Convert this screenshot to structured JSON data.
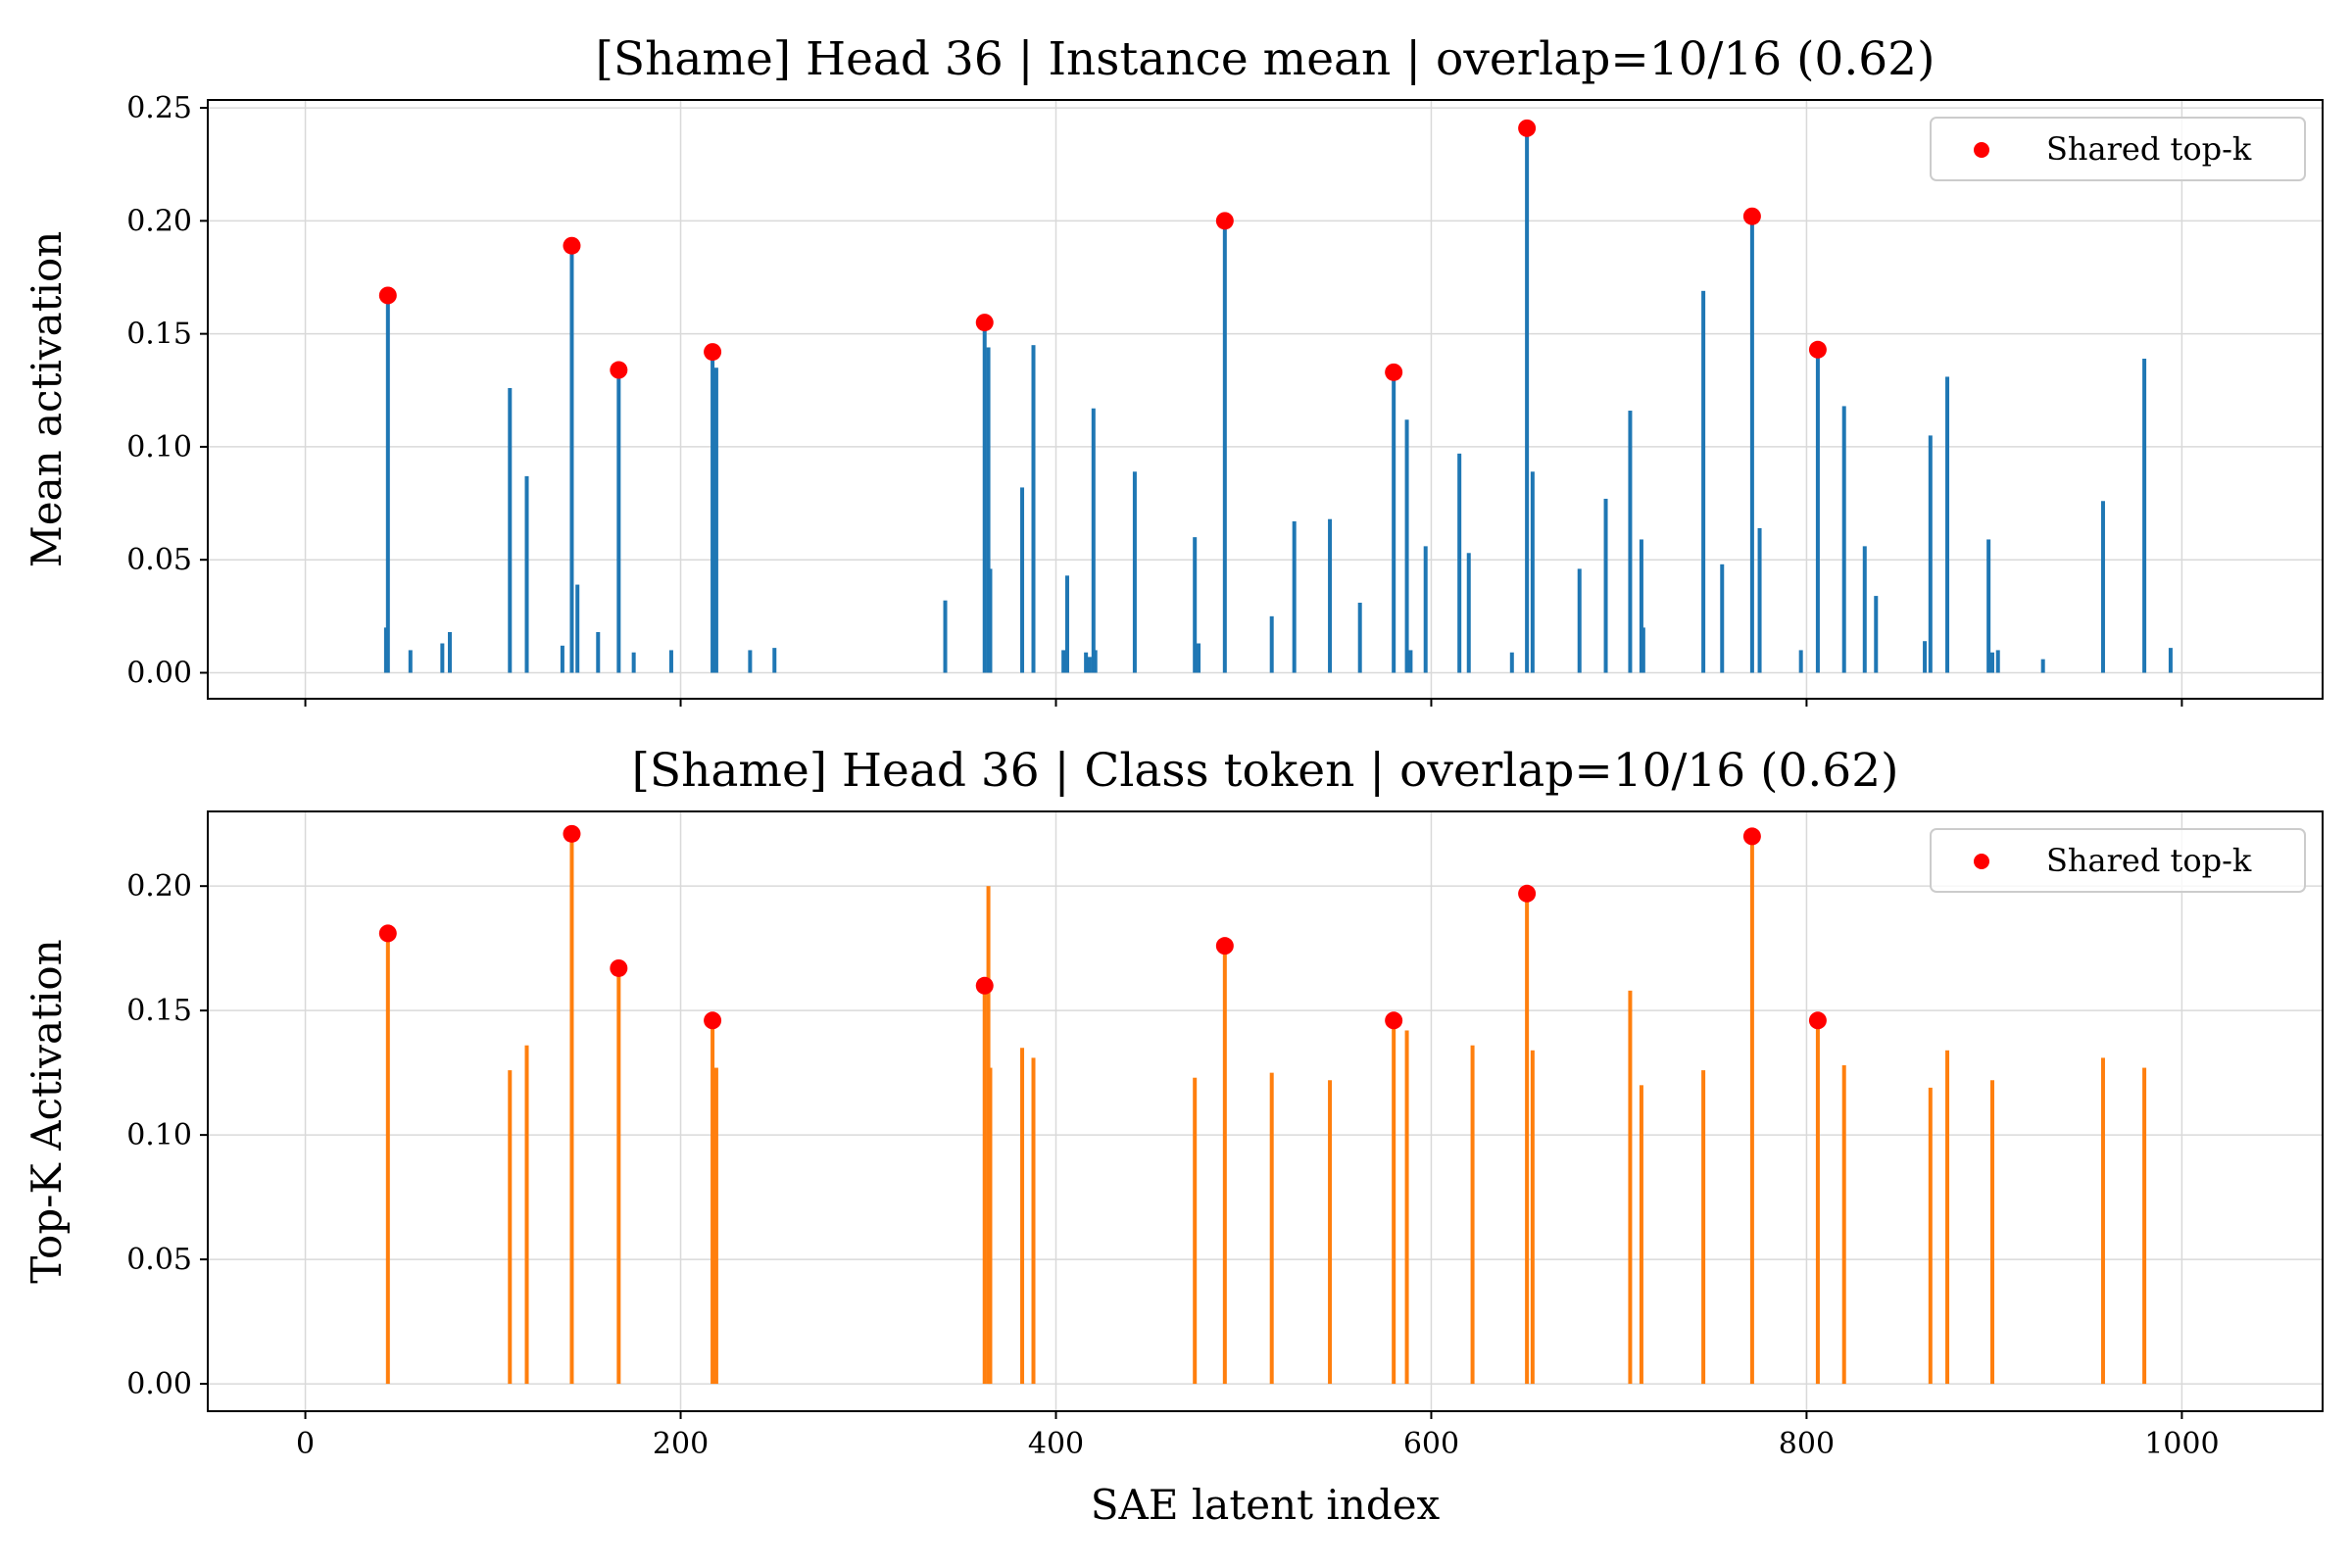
{
  "chart_data": [
    {
      "type": "bar",
      "title": "[Shame] Head 36 | Instance mean | overlap=10/16 (0.62)",
      "xlabel": "",
      "ylabel": "Mean activation",
      "xlim": [
        -52,
        1075
      ],
      "ylim": [
        -0.0115,
        0.2535
      ],
      "xticks": [
        "0",
        "200",
        "400",
        "600",
        "800",
        "1000"
      ],
      "xtick_values": [
        0,
        200,
        400,
        600,
        800,
        1000
      ],
      "show_xtick_labels": false,
      "yticks": [
        "0.00",
        "0.05",
        "0.10",
        "0.15",
        "0.20",
        "0.25"
      ],
      "ytick_values": [
        0,
        0.05,
        0.1,
        0.15,
        0.2,
        0.25
      ],
      "grid": true,
      "bar_color": "#1f77b4",
      "marker_color": "#ff0000",
      "legend": {
        "label": "Shared top-k",
        "placement": "top-right"
      },
      "series": [
        {
          "name": "Mean activation",
          "x": [
            43,
            44,
            56,
            73,
            77,
            109,
            118,
            137,
            142,
            145,
            156,
            167,
            175,
            195,
            217,
            219,
            237,
            250,
            341,
            362,
            364,
            365,
            382,
            388,
            404,
            406,
            416,
            418,
            420,
            421,
            442,
            474,
            476,
            490,
            515,
            527,
            546,
            562,
            580,
            587,
            589,
            597,
            615,
            620,
            643,
            651,
            654,
            679,
            693,
            706,
            712,
            713,
            745,
            755,
            771,
            775,
            797,
            806,
            820,
            831,
            837,
            863,
            866,
            875,
            897,
            899,
            902,
            926,
            958,
            980,
            994
          ],
          "values": [
            0.02,
            0.165,
            0.01,
            0.013,
            0.018,
            0.126,
            0.087,
            0.012,
            0.187,
            0.039,
            0.018,
            0.132,
            0.009,
            0.01,
            0.14,
            0.135,
            0.01,
            0.011,
            0.032,
            0.153,
            0.144,
            0.046,
            0.082,
            0.145,
            0.01,
            0.043,
            0.009,
            0.007,
            0.117,
            0.01,
            0.089,
            0.06,
            0.013,
            0.2,
            0.025,
            0.067,
            0.068,
            0.031,
            0.131,
            0.112,
            0.01,
            0.056,
            0.097,
            0.053,
            0.009,
            0.239,
            0.089,
            0.046,
            0.077,
            0.116,
            0.059,
            0.02,
            0.169,
            0.048,
            0.2,
            0.064,
            0.01,
            0.142,
            0.118,
            0.056,
            0.034,
            0.014,
            0.105,
            0.131,
            0.059,
            0.009,
            0.01,
            0.006,
            0.076,
            0.139,
            0.011
          ]
        }
      ],
      "shared_topk": {
        "x": [
          44,
          142,
          167,
          217,
          362,
          490,
          580,
          651,
          771,
          806
        ],
        "values": [
          0.167,
          0.189,
          0.134,
          0.142,
          0.155,
          0.2,
          0.133,
          0.241,
          0.202,
          0.143
        ]
      }
    },
    {
      "type": "bar",
      "title": "[Shame] Head 36 | Class token | overlap=10/16 (0.62)",
      "xlabel": "SAE latent index",
      "ylabel": "Top-K Activation",
      "xlim": [
        -52,
        1075
      ],
      "ylim": [
        -0.011,
        0.23
      ],
      "xticks": [
        "0",
        "200",
        "400",
        "600",
        "800",
        "1000"
      ],
      "xtick_values": [
        0,
        200,
        400,
        600,
        800,
        1000
      ],
      "show_xtick_labels": true,
      "yticks": [
        "0.00",
        "0.05",
        "0.10",
        "0.15",
        "0.20"
      ],
      "ytick_values": [
        0,
        0.05,
        0.1,
        0.15,
        0.2
      ],
      "grid": true,
      "bar_color": "#ff7f0e",
      "marker_color": "#ff0000",
      "legend": {
        "label": "Shared top-k",
        "placement": "top-right"
      },
      "series": [
        {
          "name": "Top-K Activation",
          "x": [
            44,
            109,
            118,
            142,
            167,
            217,
            219,
            362,
            364,
            365,
            382,
            388,
            474,
            490,
            515,
            546,
            580,
            587,
            622,
            651,
            654,
            706,
            712,
            745,
            771,
            806,
            820,
            866,
            875,
            899,
            958,
            980
          ],
          "values": [
            0.181,
            0.126,
            0.136,
            0.221,
            0.167,
            0.146,
            0.127,
            0.16,
            0.2,
            0.127,
            0.135,
            0.131,
            0.123,
            0.176,
            0.125,
            0.122,
            0.146,
            0.142,
            0.136,
            0.197,
            0.134,
            0.158,
            0.12,
            0.126,
            0.22,
            0.146,
            0.128,
            0.119,
            0.134,
            0.122,
            0.131,
            0.127
          ]
        }
      ],
      "shared_topk": {
        "x": [
          44,
          142,
          167,
          217,
          362,
          490,
          580,
          651,
          771,
          806
        ],
        "values": [
          0.181,
          0.221,
          0.167,
          0.146,
          0.16,
          0.176,
          0.146,
          0.197,
          0.22,
          0.146
        ]
      }
    }
  ]
}
